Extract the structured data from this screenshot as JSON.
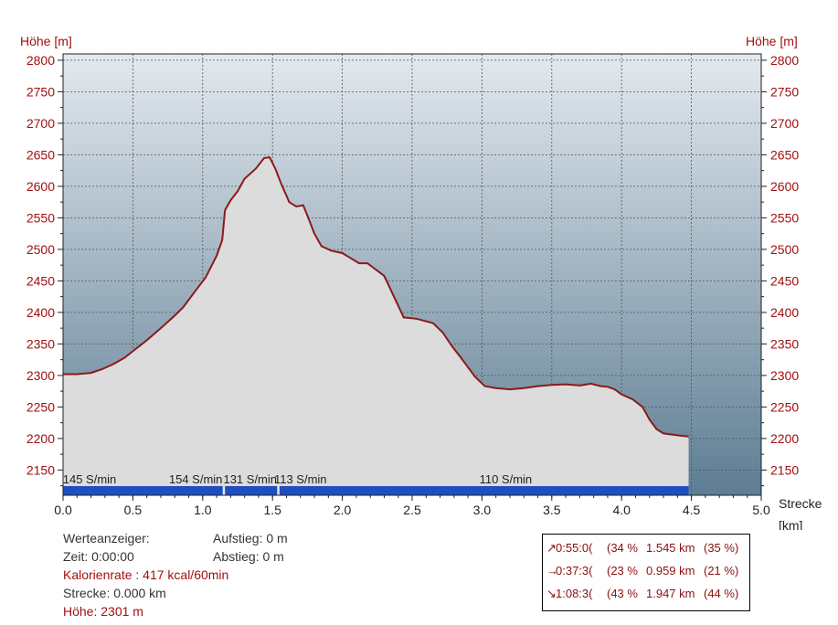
{
  "colors": {
    "profile_line": "#8b1a1a",
    "profile_fill": "#dcdcdc",
    "bg_top": "#e3e9ef",
    "bg_bottom": "#5d7d93",
    "cadence_bar": "#1f4fbf",
    "axis_text_red": "#a01010",
    "axis_text_black": "#222222"
  },
  "chart_data": {
    "type": "area",
    "title": "",
    "ylabel_left": "Höhe [m]",
    "ylabel_right": "Höhe [m]",
    "xlabel_line1": "Strecke",
    "xlabel_line2": "[km]",
    "xlim": [
      0,
      5
    ],
    "ylim": [
      2110,
      2810
    ],
    "x_ticks": [
      "0.0",
      "0.5",
      "1.0",
      "1.5",
      "2.0",
      "2.5",
      "3.0",
      "3.5",
      "4.0",
      "4.5",
      "5.0"
    ],
    "y_ticks": [
      "2800",
      "2750",
      "2700",
      "2650",
      "2600",
      "2550",
      "2500",
      "2450",
      "2400",
      "2350",
      "2300",
      "2250",
      "2200",
      "2150"
    ],
    "grid": true,
    "x": [
      0.0,
      0.1,
      0.2,
      0.28,
      0.36,
      0.44,
      0.52,
      0.6,
      0.7,
      0.8,
      0.86,
      0.95,
      1.02,
      1.1,
      1.14,
      1.16,
      1.2,
      1.25,
      1.3,
      1.38,
      1.44,
      1.48,
      1.52,
      1.56,
      1.62,
      1.67,
      1.72,
      1.76,
      1.8,
      1.85,
      1.92,
      2.0,
      2.12,
      2.18,
      2.3,
      2.38,
      2.44,
      2.53,
      2.65,
      2.72,
      2.78,
      2.85,
      2.95,
      3.02,
      3.1,
      3.2,
      3.3,
      3.4,
      3.5,
      3.6,
      3.7,
      3.78,
      3.85,
      3.9,
      3.95,
      4.0,
      4.08,
      4.15,
      4.2,
      4.25,
      4.3,
      4.4,
      4.48
    ],
    "y": [
      2302,
      2302,
      2304,
      2310,
      2318,
      2328,
      2342,
      2356,
      2375,
      2395,
      2408,
      2435,
      2455,
      2490,
      2515,
      2562,
      2578,
      2592,
      2612,
      2628,
      2645,
      2646,
      2628,
      2605,
      2575,
      2568,
      2570,
      2548,
      2525,
      2505,
      2498,
      2494,
      2478,
      2478,
      2458,
      2420,
      2392,
      2390,
      2383,
      2368,
      2348,
      2328,
      2298,
      2283,
      2280,
      2278,
      2280,
      2283,
      2285,
      2286,
      2284,
      2287,
      2283,
      2282,
      2278,
      2270,
      2262,
      2250,
      2230,
      2215,
      2208,
      2205,
      2203
    ],
    "cadence_segments": [
      {
        "label": "145 S/min",
        "x_start": 0.0,
        "x_end": 1.15
      },
      {
        "label": "154 S/min",
        "x_start": 1.15,
        "x_end": 1.15
      },
      {
        "label": "131 S/min",
        "x_start": 1.15,
        "x_end": 1.54
      },
      {
        "label": "113 S/min",
        "x_start": 1.54,
        "x_end": 1.54
      },
      {
        "label": "110 S/min",
        "x_start": 1.54,
        "x_end": 4.48
      }
    ],
    "cadence_markers": [
      1.15,
      1.54
    ]
  },
  "info_panel": {
    "werteanzeiger": "Werteanzeiger:",
    "aufstieg": "Aufstieg: 0 m",
    "zeit": "Zeit: 0:00:00",
    "abstieg": "Abstieg: 0 m",
    "kalorienrate": "Kalorienrate : 417 kcal/60min",
    "strecke": "Strecke: 0.000 km",
    "hoehe": "Höhe: 2301 m"
  },
  "stats": {
    "rows": [
      {
        "icon": "↗",
        "time": "0:55:0(",
        "time_pct": "(34 %",
        "dist": "1.545 km",
        "dist_pct": "(35 %)"
      },
      {
        "icon": "→",
        "time": "0:37:3(",
        "time_pct": "(23 %",
        "dist": "0.959 km",
        "dist_pct": "(21 %)"
      },
      {
        "icon": "↘",
        "time": "1:08:3(",
        "time_pct": "(43 %",
        "dist": "1.947 km",
        "dist_pct": "(44 %)"
      }
    ]
  }
}
